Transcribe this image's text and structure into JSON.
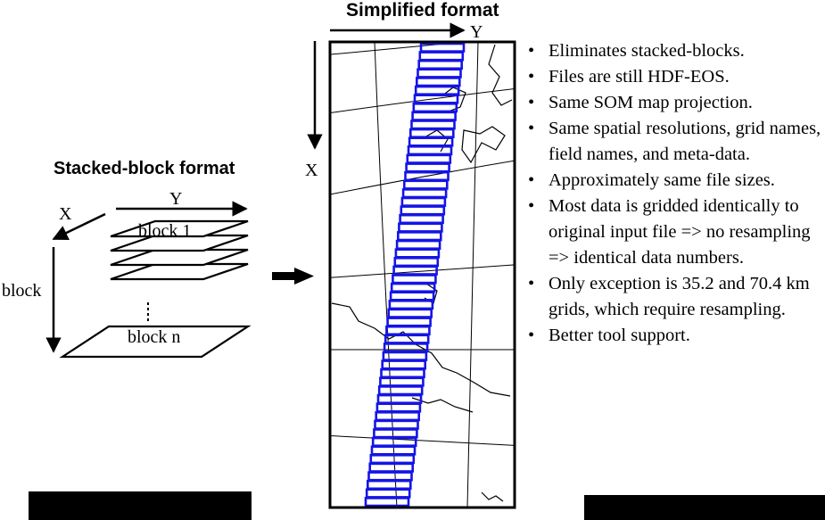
{
  "simplified_title": "Simplified format",
  "stacked_title": "Stacked-block format",
  "simplified_axes": {
    "y_label": "Y",
    "x_label": "X"
  },
  "stacked_axes": {
    "y_label": "Y",
    "x_label": "X",
    "stack_label": "block"
  },
  "stack_blocks": [
    {
      "label": "block 1"
    },
    {
      "label": "block n"
    }
  ],
  "bullets": [
    "Eliminates stacked-blocks.",
    "Files are still HDF-EOS.",
    "Same SOM map projection.",
    "Same spatial resolutions, grid names, field names, and meta-data.",
    "Approximately same file sizes.",
    "Most data is gridded identically to original input file => no resampling => identical data numbers.",
    "Only exception is 35.2 and 70.4 km grids, which require resampling.",
    "Better tool support."
  ],
  "colors": {
    "swath_blue": "#1414e6",
    "ink": "#000000",
    "background": "#ffffff"
  },
  "icons": {
    "transition_arrow": "right-arrow-icon"
  }
}
